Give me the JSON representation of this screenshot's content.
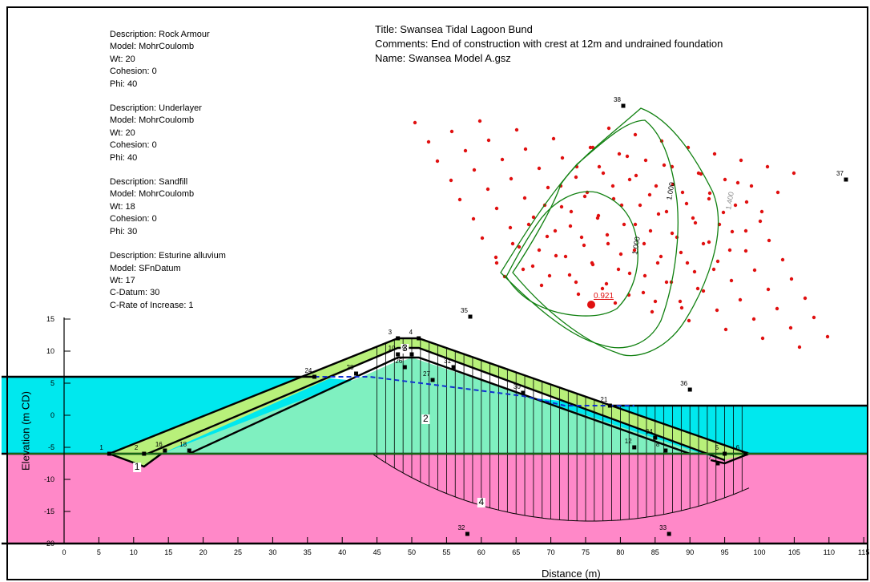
{
  "header": {
    "title": "Title: Swansea Tidal Lagoon Bund",
    "comments": "Comments: End of construction with crest at 12m and undrained foundation",
    "name": "Name: Swansea Model A.gsz"
  },
  "materials": [
    {
      "lines": [
        "Description: Rock Armour",
        "Model: MohrCoulomb",
        "Wt: 20",
        "Cohesion: 0",
        "Phi: 40"
      ]
    },
    {
      "lines": [
        "Description: Underlayer",
        "Model: MohrCoulomb",
        "Wt: 20",
        "Cohesion: 0",
        "Phi: 40"
      ]
    },
    {
      "lines": [
        "Description: Sandfill",
        "Model: MohrCoulomb",
        "Wt: 18",
        "Cohesion: 0",
        "Phi: 30"
      ]
    },
    {
      "lines": [
        "Description: Esturine alluvium",
        "Model: SFnDatum",
        "Wt: 17",
        "C-Datum: 30",
        "C-Rate of Increase: 1"
      ]
    }
  ],
  "axes": {
    "x_title": "Distance (m)",
    "y_title": "Elevation (m CD)",
    "x_ticks": [
      "0",
      "5",
      "10",
      "15",
      "20",
      "25",
      "30",
      "35",
      "40",
      "45",
      "50",
      "55",
      "60",
      "65",
      "70",
      "75",
      "80",
      "85",
      "90",
      "95",
      "100",
      "105",
      "110",
      "115"
    ],
    "y_ticks": [
      "15",
      "10",
      "5",
      "0",
      "-5",
      "-10",
      "-15",
      "-20"
    ],
    "x_range": [
      0,
      115
    ],
    "y_range": [
      -20,
      15
    ]
  },
  "regions": [
    {
      "label": "1",
      "color": "#f28cc4"
    },
    {
      "label": "2",
      "color": "#7ff0c0"
    },
    {
      "label": "3",
      "color": "#b8f07a"
    },
    {
      "label": "4",
      "color": "#ff88c8"
    }
  ],
  "water_color": "#00e8ee",
  "points": [
    {
      "label": "1",
      "x": 6.5,
      "y": -6
    },
    {
      "label": "2",
      "x": 11.5,
      "y": -6
    },
    {
      "label": "3",
      "x": 48,
      "y": 12
    },
    {
      "label": "4",
      "x": 51,
      "y": 12
    },
    {
      "label": "5",
      "x": 95,
      "y": -6
    },
    {
      "label": "6",
      "x": 98,
      "y": -6
    },
    {
      "label": "7",
      "x": 94,
      "y": -7.5
    },
    {
      "label": "9",
      "x": 50,
      "y": 9.5
    },
    {
      "label": "10",
      "x": 48,
      "y": 9.5
    },
    {
      "label": "12",
      "x": 82,
      "y": -5
    },
    {
      "label": "16",
      "x": 14.5,
      "y": -5.5
    },
    {
      "label": "18",
      "x": 18,
      "y": -5.5
    },
    {
      "label": "21",
      "x": 78.5,
      "y": 1.5
    },
    {
      "label": "24",
      "x": 36,
      "y": 6
    },
    {
      "label": "26",
      "x": 49,
      "y": 7.5
    },
    {
      "label": "27",
      "x": 53,
      "y": 5.5
    },
    {
      "label": "28",
      "x": 42,
      "y": 6.5
    },
    {
      "label": "30",
      "x": 66,
      "y": 3.5
    },
    {
      "label": "31",
      "x": 56,
      "y": 7.5
    },
    {
      "label": "32",
      "x": 58,
      "y": -18.5
    },
    {
      "label": "33",
      "x": 87,
      "y": -18.5
    },
    {
      "label": "34",
      "x": 85,
      "y": -3.5
    },
    {
      "label": "35",
      "x": 58,
      "y": 14.5
    },
    {
      "label": "36",
      "x": 90,
      "y": 4
    },
    {
      "label": "37",
      "x": 112,
      "y": 39
    },
    {
      "label": "38",
      "x": 80,
      "y": 45
    },
    {
      "label": "8",
      "x": 86.5,
      "y": -5.5
    }
  ],
  "fos": {
    "label": "0.921",
    "x": 75.8,
    "y": 17.5
  },
  "contours": [
    "1.000",
    "1.000",
    "1.400"
  ]
}
